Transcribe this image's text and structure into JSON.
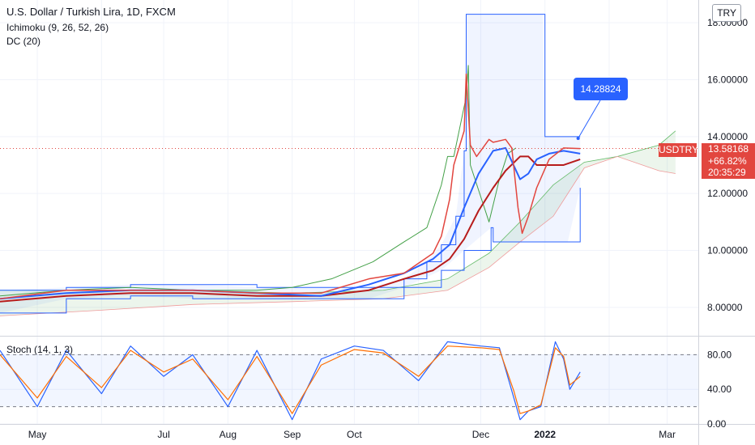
{
  "header": {
    "symbol_title": "U.S. Dollar / Turkish Lira, 1D, FXCM",
    "currency_badge": "TRY"
  },
  "legend": {
    "ichimoku": "Ichimoku (9, 26, 52, 26)",
    "donchian": "DC (20)",
    "stoch": "Stoch (14, 1, 3)"
  },
  "price_tag": {
    "symbol": "USDTRY",
    "price": "13.58168",
    "change": "+66.82%",
    "countdown": "20:35:29"
  },
  "annotation": {
    "value": "14.28824"
  },
  "colors": {
    "price_line": "#e2463f",
    "conversion": "#2962ff",
    "base": "#b71c1c",
    "lagging": "#43a047",
    "donchian": "#2962ff",
    "stoch_k": "#2962ff",
    "stoch_d": "#ff6d00",
    "annotation": "#2962ff"
  },
  "chart_data": [
    {
      "type": "line",
      "title": "U.S. Dollar / Turkish Lira, 1D, FXCM",
      "ylim": [
        7.0,
        18.8
      ],
      "yticks": [
        "18.00000",
        "16.00000",
        "14.00000",
        "12.00000",
        "10.00000",
        "8.00000"
      ],
      "xticks": [
        "May",
        "Jul",
        "Aug",
        "Sep",
        "Oct",
        "Dec",
        "2022",
        "Mar"
      ],
      "grid": true,
      "legend_position": "top-left",
      "last_price": 13.58168,
      "series": [
        {
          "name": "Conversion",
          "color": "#2962ff",
          "x": [
            "2021-04-13",
            "2021-05-15",
            "2021-06-15",
            "2021-07-15",
            "2021-08-15",
            "2021-09-15",
            "2021-10-08",
            "2021-10-25",
            "2021-11-08",
            "2021-11-16",
            "2021-11-23",
            "2021-11-30",
            "2021-12-07",
            "2021-12-13",
            "2021-12-20",
            "2021-12-24",
            "2021-12-28",
            "2022-01-03",
            "2022-01-10",
            "2022-01-18"
          ],
          "values": [
            8.3,
            8.5,
            8.6,
            8.6,
            8.5,
            8.4,
            8.8,
            9.2,
            9.7,
            10.2,
            11.5,
            12.7,
            13.5,
            13.6,
            12.5,
            12.7,
            13.2,
            13.4,
            13.5,
            13.4
          ]
        },
        {
          "name": "Base",
          "color": "#b71c1c",
          "x": [
            "2021-04-13",
            "2021-05-15",
            "2021-06-15",
            "2021-07-15",
            "2021-08-15",
            "2021-09-15",
            "2021-10-08",
            "2021-10-25",
            "2021-11-08",
            "2021-11-16",
            "2021-11-23",
            "2021-11-30",
            "2021-12-07",
            "2021-12-13",
            "2021-12-20",
            "2021-12-24",
            "2021-12-28",
            "2022-01-03",
            "2022-01-10",
            "2022-01-18"
          ],
          "values": [
            8.2,
            8.4,
            8.5,
            8.5,
            8.4,
            8.4,
            8.6,
            9.0,
            9.3,
            9.7,
            10.4,
            11.4,
            12.2,
            12.8,
            13.3,
            13.3,
            13.0,
            13.0,
            13.0,
            13.2
          ]
        },
        {
          "name": "Lagging Span",
          "color": "#43a047",
          "x": [
            "2021-04-13",
            "2021-05-15",
            "2021-06-15",
            "2021-07-15",
            "2021-08-15",
            "2021-09-01",
            "2021-09-20",
            "2021-10-10",
            "2021-10-25",
            "2021-11-05",
            "2021-11-12",
            "2021-11-15",
            "2021-11-18",
            "2021-11-24",
            "2021-11-25",
            "2021-11-26",
            "2021-12-05",
            "2021-12-10",
            "2021-12-14",
            "2021-12-18"
          ],
          "values": [
            8.4,
            8.6,
            8.7,
            8.6,
            8.6,
            8.7,
            9.0,
            9.6,
            10.3,
            10.8,
            12.3,
            13.3,
            13.3,
            15.4,
            16.5,
            13.0,
            11.0,
            12.5,
            13.4,
            13.6
          ]
        },
        {
          "name": "DC Upper",
          "color": "#2962ff",
          "x": [
            "2021-04-13",
            "2021-05-15",
            "2021-06-15",
            "2021-07-15",
            "2021-08-15",
            "2021-09-15",
            "2021-10-08",
            "2021-10-25",
            "2021-11-05",
            "2021-11-12",
            "2021-11-19",
            "2021-11-23",
            "2021-11-24",
            "2021-12-31",
            "2022-01-01",
            "2022-01-18"
          ],
          "values": [
            8.6,
            8.7,
            8.8,
            8.8,
            8.7,
            8.7,
            8.7,
            9.0,
            9.6,
            10.2,
            11.2,
            13.5,
            18.3,
            18.3,
            14.0,
            14.0
          ]
        },
        {
          "name": "DC Lower",
          "color": "#2962ff",
          "x": [
            "2021-04-13",
            "2021-05-15",
            "2021-06-15",
            "2021-07-15",
            "2021-08-15",
            "2021-09-15",
            "2021-10-08",
            "2021-10-25",
            "2021-11-12",
            "2021-11-23",
            "2021-12-06",
            "2021-12-07",
            "2021-12-29",
            "2022-01-12",
            "2022-01-18"
          ],
          "values": [
            7.8,
            8.3,
            8.4,
            8.3,
            8.3,
            8.3,
            8.3,
            8.7,
            9.3,
            10.0,
            10.8,
            10.3,
            10.3,
            10.3,
            12.2
          ]
        },
        {
          "name": "Price",
          "color": "#e2463f",
          "x": [
            "2021-04-13",
            "2021-05-15",
            "2021-06-15",
            "2021-07-15",
            "2021-08-15",
            "2021-09-15",
            "2021-10-08",
            "2021-10-25",
            "2021-11-08",
            "2021-11-12",
            "2021-11-16",
            "2021-11-18",
            "2021-11-23",
            "2021-11-24",
            "2021-11-26",
            "2021-11-29",
            "2021-12-02",
            "2021-12-05",
            "2021-12-07",
            "2021-12-13",
            "2021-12-16",
            "2021-12-19",
            "2021-12-21",
            "2021-12-24",
            "2021-12-28",
            "2022-01-03",
            "2022-01-10",
            "2022-01-18"
          ],
          "values": [
            8.3,
            8.6,
            8.6,
            8.6,
            8.5,
            8.5,
            9.0,
            9.2,
            9.9,
            10.5,
            11.8,
            13.0,
            14.2,
            16.2,
            13.7,
            13.3,
            13.6,
            13.9,
            13.8,
            13.9,
            13.6,
            11.5,
            10.6,
            11.2,
            12.2,
            13.2,
            13.6,
            13.58
          ]
        }
      ]
    },
    {
      "type": "line",
      "title": "Stoch (14, 1, 3)",
      "ylim": [
        0,
        100
      ],
      "yticks": [
        "80.00",
        "40.00",
        "0.00"
      ],
      "bands": [
        20,
        80
      ],
      "series": [
        {
          "name": "%K",
          "color": "#2962ff",
          "x": [
            "2021-04-13",
            "2021-05-01",
            "2021-05-15",
            "2021-06-01",
            "2021-06-15",
            "2021-07-01",
            "2021-07-15",
            "2021-08-01",
            "2021-08-15",
            "2021-09-01",
            "2021-09-15",
            "2021-10-01",
            "2021-10-15",
            "2021-11-01",
            "2021-11-15",
            "2021-12-01",
            "2021-12-10",
            "2021-12-17",
            "2021-12-20",
            "2021-12-24",
            "2021-12-30",
            "2022-01-06",
            "2022-01-10",
            "2022-01-13",
            "2022-01-18"
          ],
          "values": [
            85,
            20,
            85,
            35,
            90,
            55,
            80,
            20,
            85,
            5,
            75,
            90,
            85,
            50,
            95,
            90,
            88,
            30,
            5,
            15,
            20,
            95,
            75,
            40,
            60
          ]
        },
        {
          "name": "%D",
          "color": "#ff6d00",
          "x": [
            "2021-04-13",
            "2021-05-01",
            "2021-05-15",
            "2021-06-01",
            "2021-06-15",
            "2021-07-01",
            "2021-07-15",
            "2021-08-01",
            "2021-08-15",
            "2021-09-01",
            "2021-09-15",
            "2021-10-01",
            "2021-10-15",
            "2021-11-01",
            "2021-11-15",
            "2021-12-01",
            "2021-12-10",
            "2021-12-17",
            "2021-12-20",
            "2021-12-24",
            "2021-12-30",
            "2022-01-06",
            "2022-01-10",
            "2022-01-13",
            "2022-01-18"
          ],
          "values": [
            80,
            30,
            78,
            42,
            85,
            60,
            75,
            28,
            78,
            12,
            68,
            86,
            82,
            55,
            90,
            88,
            86,
            38,
            12,
            15,
            22,
            88,
            78,
            45,
            55
          ]
        }
      ]
    }
  ]
}
